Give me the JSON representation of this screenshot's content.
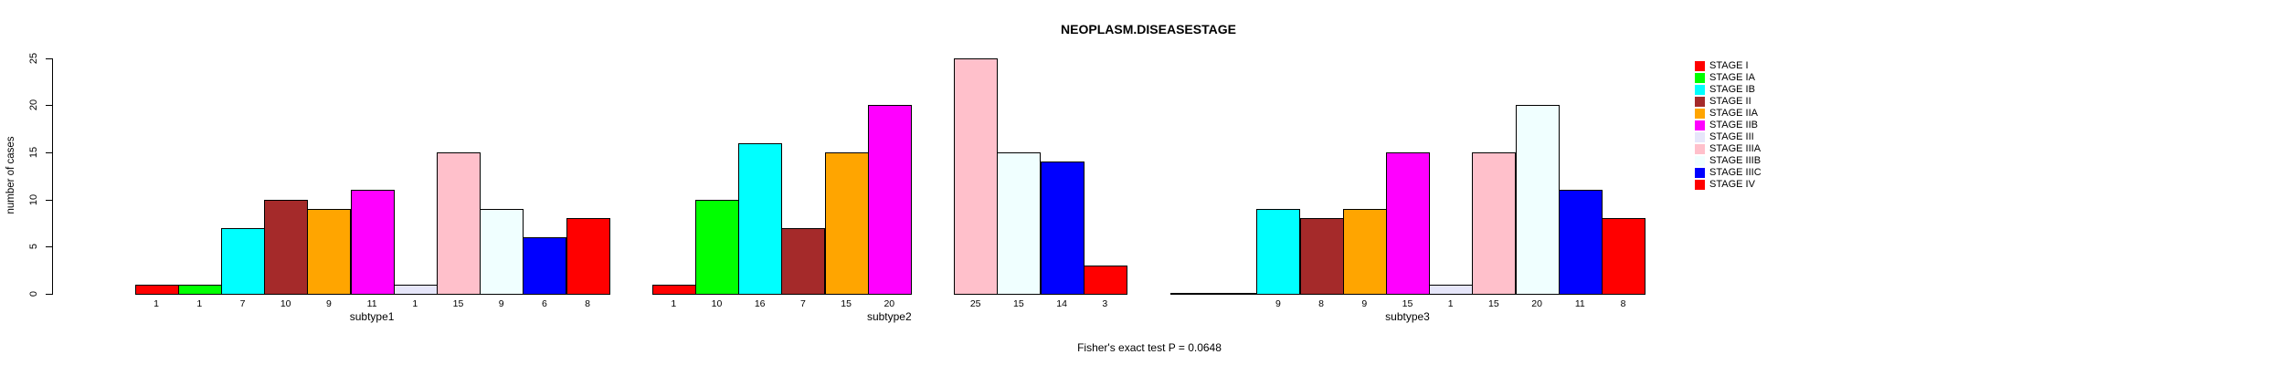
{
  "chart_data": {
    "type": "bar",
    "title": "NEOPLASM.DISEASESTAGE",
    "ylabel": "number of cases",
    "footer": "Fisher's exact test P = 0.0648",
    "ylim": [
      0,
      25
    ],
    "yticks": [
      0,
      5,
      10,
      15,
      20,
      25
    ],
    "grid": false,
    "legend_position": "right",
    "bar_value_labels_shown": true,
    "series_names": [
      "STAGE I",
      "STAGE IA",
      "STAGE IB",
      "STAGE II",
      "STAGE IIA",
      "STAGE IIB",
      "STAGE III",
      "STAGE IIIA",
      "STAGE IIIB",
      "STAGE IIIC",
      "STAGE IV"
    ],
    "series_colors": [
      "#FF0000",
      "#00FF00",
      "#00FFFF",
      "#A52A2A",
      "#FFA500",
      "#FF00FF",
      "#E6E6FA",
      "#FFC0CB",
      "#F0FFFF",
      "#0000FF",
      "#FF0000"
    ],
    "groups": [
      {
        "label": "subtype1",
        "values": [
          1,
          1,
          7,
          10,
          9,
          11,
          1,
          15,
          9,
          6,
          8
        ]
      },
      {
        "label": "subtype2",
        "values": [
          1,
          10,
          16,
          7,
          15,
          20,
          null,
          25,
          15,
          14,
          3
        ]
      },
      {
        "label": "subtype3",
        "values": [
          0,
          0,
          9,
          8,
          9,
          15,
          1,
          15,
          20,
          11,
          8
        ]
      }
    ]
  }
}
